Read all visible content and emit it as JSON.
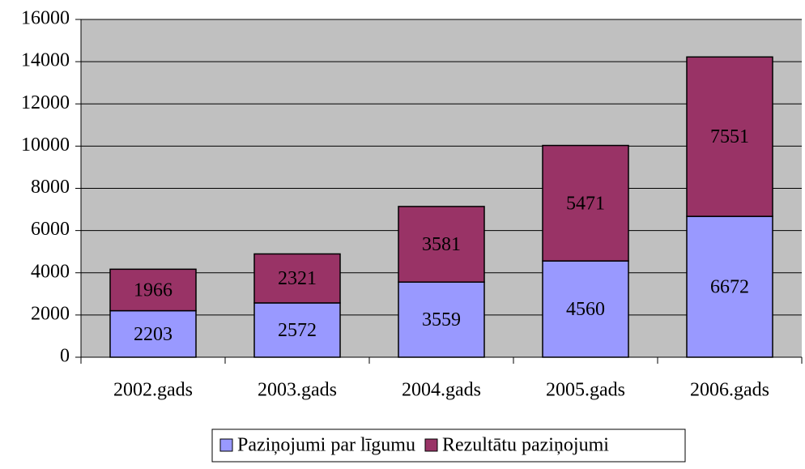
{
  "chart_data": {
    "type": "stacked_bar",
    "categories": [
      "2002.gads",
      "2003.gads",
      "2004.gads",
      "2005.gads",
      "2006.gads"
    ],
    "series": [
      {
        "name": "Paziņojumi par līgumu",
        "color": "#9999ff",
        "values": [
          2203,
          2572,
          3559,
          4560,
          6672
        ]
      },
      {
        "name": "Rezultātu paziņojumi",
        "color": "#993366",
        "values": [
          1966,
          2321,
          3581,
          5471,
          7551
        ]
      }
    ],
    "ylim": [
      0,
      16000
    ],
    "yticks": [
      0,
      2000,
      4000,
      6000,
      8000,
      10000,
      12000,
      14000,
      16000
    ],
    "grid": true,
    "legend": "bottom"
  }
}
